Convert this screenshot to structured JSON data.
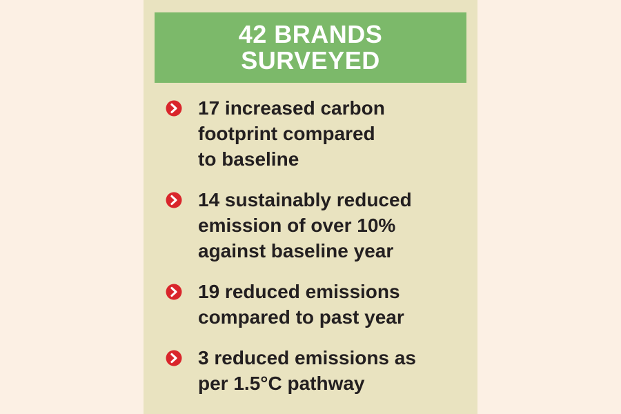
{
  "header": {
    "lines": [
      "42 BRANDS",
      "SURVEYED"
    ]
  },
  "items": [
    [
      "17 increased carbon",
      "footprint compared",
      "to baseline"
    ],
    [
      "14 sustainably reduced",
      "emission of over 10%",
      "against baseline year"
    ],
    [
      "19 reduced emissions",
      "compared to past year"
    ],
    [
      "3 reduced emissions as",
      "per 1.5°C pathway"
    ]
  ]
}
